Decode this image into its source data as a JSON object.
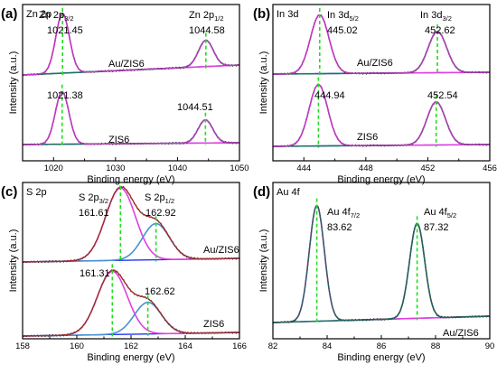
{
  "chart_data": [
    {
      "type": "line",
      "panel_label": "(a)",
      "element_label": "Zn 2p",
      "xlabel": "Binding energy (eV)",
      "ylabel": "Intensity (a.u.)",
      "xlim": [
        1015,
        1050
      ],
      "xticks": [
        1020,
        1030,
        1040,
        1050
      ],
      "colors": {
        "data": "#1a1a1a",
        "fit": "#e040e0",
        "comp1": "#e040e0",
        "comp2": "#1f6f66",
        "bg": "#2233ee"
      },
      "series": [
        {
          "sample": "Au/ZIS6",
          "peaks": [
            {
              "label": "Zn 2p",
              "sub": "3/2",
              "value": "1021.45",
              "x": 1021.45,
              "height": 1.0,
              "width": 1.1,
              "comp": "comp1"
            },
            {
              "label": "Zn 2p",
              "sub": "1/2",
              "value": "1044.58",
              "x": 1044.58,
              "height": 0.44,
              "width": 1.2,
              "comp": "comp2"
            }
          ]
        },
        {
          "sample": "ZIS6",
          "peaks": [
            {
              "label": "",
              "sub": "",
              "value": "1021.38",
              "x": 1021.38,
              "height": 1.0,
              "width": 1.1,
              "comp": "comp1"
            },
            {
              "label": "",
              "sub": "",
              "value": "1044.51",
              "x": 1044.51,
              "height": 0.44,
              "width": 1.2,
              "comp": "comp2"
            }
          ]
        }
      ]
    },
    {
      "type": "line",
      "panel_label": "(b)",
      "element_label": "In 3d",
      "xlabel": "Binding energy (eV)",
      "ylabel": "Intensity (a.u.)",
      "xlim": [
        442,
        456
      ],
      "xticks": [
        444,
        448,
        452,
        456
      ],
      "colors": {
        "data": "#1a1a1a",
        "fit": "#e040e0",
        "comp1": "#e040e0",
        "comp2": "#1f6f66",
        "bg": "#2233ee"
      },
      "series": [
        {
          "sample": "Au/ZIS6",
          "peaks": [
            {
              "label": "In 3d",
              "sub": "5/2",
              "value": "445.02",
              "x": 445.02,
              "height": 1.0,
              "width": 0.6,
              "comp": "comp1"
            },
            {
              "label": "In 3d",
              "sub": "3/2",
              "value": "452.62",
              "x": 452.62,
              "height": 0.7,
              "width": 0.6,
              "comp": "comp2"
            }
          ]
        },
        {
          "sample": "ZIS6",
          "peaks": [
            {
              "label": "",
              "sub": "",
              "value": "444.94",
              "x": 444.94,
              "height": 1.0,
              "width": 0.6,
              "comp": "comp1"
            },
            {
              "label": "",
              "sub": "",
              "value": "452.54",
              "x": 452.54,
              "height": 0.7,
              "width": 0.6,
              "comp": "comp2"
            }
          ]
        }
      ]
    },
    {
      "type": "line",
      "panel_label": "(c)",
      "element_label": "S 2p",
      "xlabel": "Binding energy (eV)",
      "ylabel": "Intensity (a.u.)",
      "xlim": [
        158,
        166
      ],
      "xticks": [
        158,
        160,
        162,
        164,
        166
      ],
      "colors": {
        "data": "#1a1a1a",
        "fit": "#c03030",
        "comp1": "#e040e0",
        "comp2": "#4a90d0",
        "bg": "#2233ee"
      },
      "series": [
        {
          "sample": "Au/ZIS6",
          "peaks": [
            {
              "label": "S 2p",
              "sub": "3/2",
              "value": "161.61",
              "x": 161.61,
              "height": 1.0,
              "width": 0.55,
              "comp": "comp1"
            },
            {
              "label": "S 2p",
              "sub": "1/2",
              "value": "162.92",
              "x": 162.92,
              "height": 0.5,
              "width": 0.5,
              "comp": "comp2"
            }
          ]
        },
        {
          "sample": "ZIS6",
          "peaks": [
            {
              "label": "",
              "sub": "",
              "value": "161.31",
              "x": 161.31,
              "height": 1.0,
              "width": 0.55,
              "comp": "comp1"
            },
            {
              "label": "",
              "sub": "",
              "value": "162.62",
              "x": 162.62,
              "height": 0.5,
              "width": 0.5,
              "comp": "comp2"
            }
          ]
        }
      ]
    },
    {
      "type": "line",
      "panel_label": "(d)",
      "element_label": "Au 4f",
      "xlabel": "Binding energy (eV)",
      "ylabel": "Intensity (a.u.)",
      "xlim": [
        82,
        90
      ],
      "xticks": [
        82,
        84,
        86,
        88,
        90
      ],
      "colors": {
        "data": "#1a1a1a",
        "fit": "#2a6f6a",
        "comp1": "#e040e0",
        "comp2": "#2a6f6a",
        "bg": "#2233ee"
      },
      "series": [
        {
          "sample": "Au/ZIS6",
          "peaks": [
            {
              "label": "Au 4f",
              "sub": "7/2",
              "value": "83.62",
              "x": 83.62,
              "height": 1.0,
              "width": 0.28,
              "comp": "comp1"
            },
            {
              "label": "Au 4f",
              "sub": "5/2",
              "value": "87.32",
              "x": 87.32,
              "height": 0.82,
              "width": 0.28,
              "comp": "comp2"
            }
          ]
        }
      ]
    }
  ]
}
